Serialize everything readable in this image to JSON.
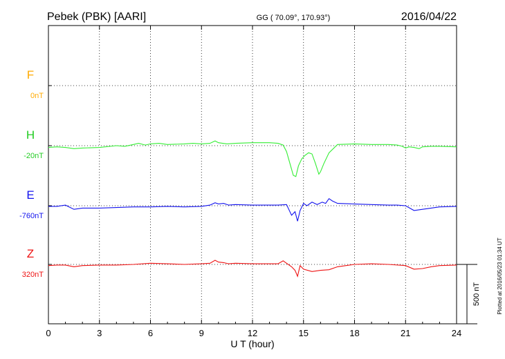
{
  "header": {
    "station": "Pebek (PBK)  [AARI]",
    "coords": "GG ( 70.09°, 170.93°)",
    "date": "2016/04/22"
  },
  "side_note": "Plotted at 2016/05/23 01:34 UT",
  "chart_data": {
    "type": "line",
    "xlabel": "U T (hour)",
    "xlim": [
      0,
      24
    ],
    "xticks": [
      "0",
      "3",
      "6",
      "9",
      "12",
      "15",
      "18",
      "21",
      "24"
    ],
    "ylim_nT": [
      -1150,
      1050
    ],
    "scale_bar": {
      "label": "500 nT",
      "length_nT": 500
    },
    "series": [
      {
        "name": "F",
        "baseline_label": "0nT",
        "color": "#ffaa00",
        "label_color": "#ffaa00",
        "value_color": "#ffaa00",
        "points": []
      },
      {
        "name": "H",
        "baseline_label": "-20nT",
        "color": "#33ee33",
        "label_color": "#22cc22",
        "value_color": "#22cc22",
        "points": [
          [
            0,
            -15
          ],
          [
            0.5,
            -10
          ],
          [
            1,
            -15
          ],
          [
            1.5,
            -25
          ],
          [
            2,
            -20
          ],
          [
            3,
            -15
          ],
          [
            4,
            0
          ],
          [
            4.5,
            -5
          ],
          [
            5,
            10
          ],
          [
            5.3,
            20
          ],
          [
            5.7,
            5
          ],
          [
            6,
            15
          ],
          [
            6.5,
            20
          ],
          [
            7,
            10
          ],
          [
            8,
            15
          ],
          [
            8.5,
            20
          ],
          [
            9,
            15
          ],
          [
            9.5,
            20
          ],
          [
            9.8,
            40
          ],
          [
            10,
            25
          ],
          [
            10.5,
            15
          ],
          [
            11,
            20
          ],
          [
            12,
            25
          ],
          [
            13,
            25
          ],
          [
            13.5,
            20
          ],
          [
            13.8,
            5
          ],
          [
            14,
            -50
          ],
          [
            14.2,
            -150
          ],
          [
            14.4,
            -250
          ],
          [
            14.55,
            -260
          ],
          [
            14.7,
            -170
          ],
          [
            14.9,
            -110
          ],
          [
            15.1,
            -80
          ],
          [
            15.3,
            -60
          ],
          [
            15.5,
            -70
          ],
          [
            15.7,
            -150
          ],
          [
            15.9,
            -240
          ],
          [
            16.0,
            -220
          ],
          [
            16.2,
            -150
          ],
          [
            16.5,
            -60
          ],
          [
            17,
            10
          ],
          [
            18,
            15
          ],
          [
            19,
            10
          ],
          [
            20,
            10
          ],
          [
            20.5,
            5
          ],
          [
            20.8,
            -5
          ],
          [
            21,
            -20
          ],
          [
            21.2,
            -10
          ],
          [
            21.5,
            -15
          ],
          [
            21.8,
            -25
          ],
          [
            22,
            -10
          ],
          [
            22.5,
            -5
          ],
          [
            23,
            -5
          ],
          [
            24,
            -10
          ]
        ]
      },
      {
        "name": "E",
        "baseline_label": "-760nT",
        "color": "#1111ee",
        "label_color": "#1111ee",
        "value_color": "#1111ee",
        "points": [
          [
            0,
            -5
          ],
          [
            0.5,
            -5
          ],
          [
            1,
            5
          ],
          [
            1.5,
            -30
          ],
          [
            2,
            -20
          ],
          [
            3,
            -20
          ],
          [
            4,
            -15
          ],
          [
            5,
            -10
          ],
          [
            6,
            -10
          ],
          [
            7,
            -5
          ],
          [
            8,
            -10
          ],
          [
            9,
            -5
          ],
          [
            9.5,
            5
          ],
          [
            9.8,
            25
          ],
          [
            10,
            15
          ],
          [
            10.3,
            20
          ],
          [
            10.6,
            5
          ],
          [
            11,
            10
          ],
          [
            12,
            5
          ],
          [
            13,
            5
          ],
          [
            13.5,
            5
          ],
          [
            14,
            10
          ],
          [
            14.3,
            -80
          ],
          [
            14.5,
            -50
          ],
          [
            14.65,
            -130
          ],
          [
            14.8,
            -40
          ],
          [
            15.0,
            20
          ],
          [
            15.2,
            0
          ],
          [
            15.5,
            30
          ],
          [
            15.8,
            10
          ],
          [
            16.1,
            30
          ],
          [
            16.3,
            20
          ],
          [
            16.5,
            60
          ],
          [
            16.7,
            40
          ],
          [
            17,
            20
          ],
          [
            18,
            15
          ],
          [
            19,
            10
          ],
          [
            20,
            5
          ],
          [
            20.5,
            5
          ],
          [
            21,
            0
          ],
          [
            21.5,
            -40
          ],
          [
            22,
            -30
          ],
          [
            22.5,
            -20
          ],
          [
            23,
            -10
          ],
          [
            24,
            -5
          ]
        ]
      },
      {
        "name": "Z",
        "baseline_label": "320nT",
        "color": "#ee1111",
        "label_color": "#ee1111",
        "value_color": "#ee1111",
        "points": [
          [
            0,
            -10
          ],
          [
            0.5,
            -5
          ],
          [
            1,
            -5
          ],
          [
            1.5,
            -20
          ],
          [
            2,
            -10
          ],
          [
            3,
            -5
          ],
          [
            4,
            -5
          ],
          [
            5,
            0
          ],
          [
            6,
            10
          ],
          [
            7,
            5
          ],
          [
            8,
            0
          ],
          [
            9,
            5
          ],
          [
            9.5,
            10
          ],
          [
            9.8,
            35
          ],
          [
            10,
            20
          ],
          [
            10.3,
            15
          ],
          [
            10.6,
            5
          ],
          [
            11,
            10
          ],
          [
            12,
            5
          ],
          [
            13,
            5
          ],
          [
            13.5,
            5
          ],
          [
            13.8,
            30
          ],
          [
            14,
            10
          ],
          [
            14.3,
            -20
          ],
          [
            14.5,
            -50
          ],
          [
            14.65,
            -100
          ],
          [
            14.8,
            -10
          ],
          [
            15.0,
            -40
          ],
          [
            15.5,
            -60
          ],
          [
            16,
            -50
          ],
          [
            16.5,
            -45
          ],
          [
            17,
            -20
          ],
          [
            18,
            0
          ],
          [
            19,
            5
          ],
          [
            20,
            0
          ],
          [
            21,
            -10
          ],
          [
            21.5,
            -40
          ],
          [
            22,
            -35
          ],
          [
            22.5,
            -20
          ],
          [
            23,
            -10
          ],
          [
            24,
            -5
          ]
        ]
      }
    ]
  }
}
